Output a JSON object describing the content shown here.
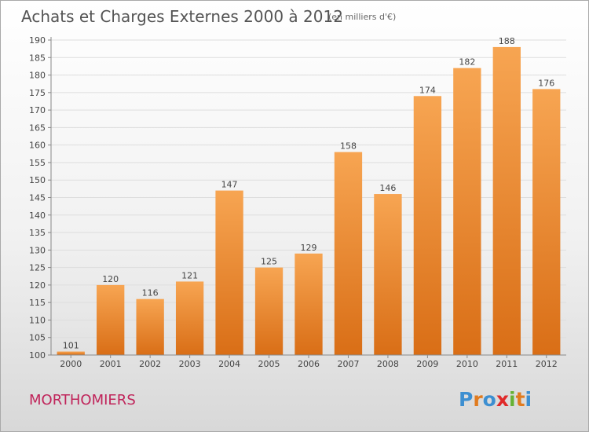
{
  "chart_data": {
    "type": "bar",
    "title": "Achats et Charges Externes 2000 à 2012",
    "subtitle": "(en milliers d'€)",
    "categories": [
      "2000",
      "2001",
      "2002",
      "2003",
      "2004",
      "2005",
      "2006",
      "2007",
      "2008",
      "2009",
      "2010",
      "2011",
      "2012"
    ],
    "values": [
      101,
      120,
      116,
      121,
      147,
      125,
      129,
      158,
      146,
      174,
      182,
      188,
      176
    ],
    "ylim": [
      100,
      190
    ],
    "yticks": [
      100,
      105,
      110,
      115,
      120,
      125,
      130,
      135,
      140,
      145,
      150,
      155,
      160,
      165,
      170,
      175,
      180,
      185,
      190
    ],
    "grid": true,
    "bar_color_top": "#f7a552",
    "bar_color_bottom": "#d96e16"
  },
  "location_label": "MORTHOMIERS",
  "location_color": "#c0245a",
  "watermark": {
    "text": "Proxiti",
    "letter_colors": [
      "#3d8fd1",
      "#e07b1f",
      "#3d8fd1",
      "#e02a2a",
      "#66b134",
      "#e07b1f",
      "#3d8fd1"
    ]
  }
}
